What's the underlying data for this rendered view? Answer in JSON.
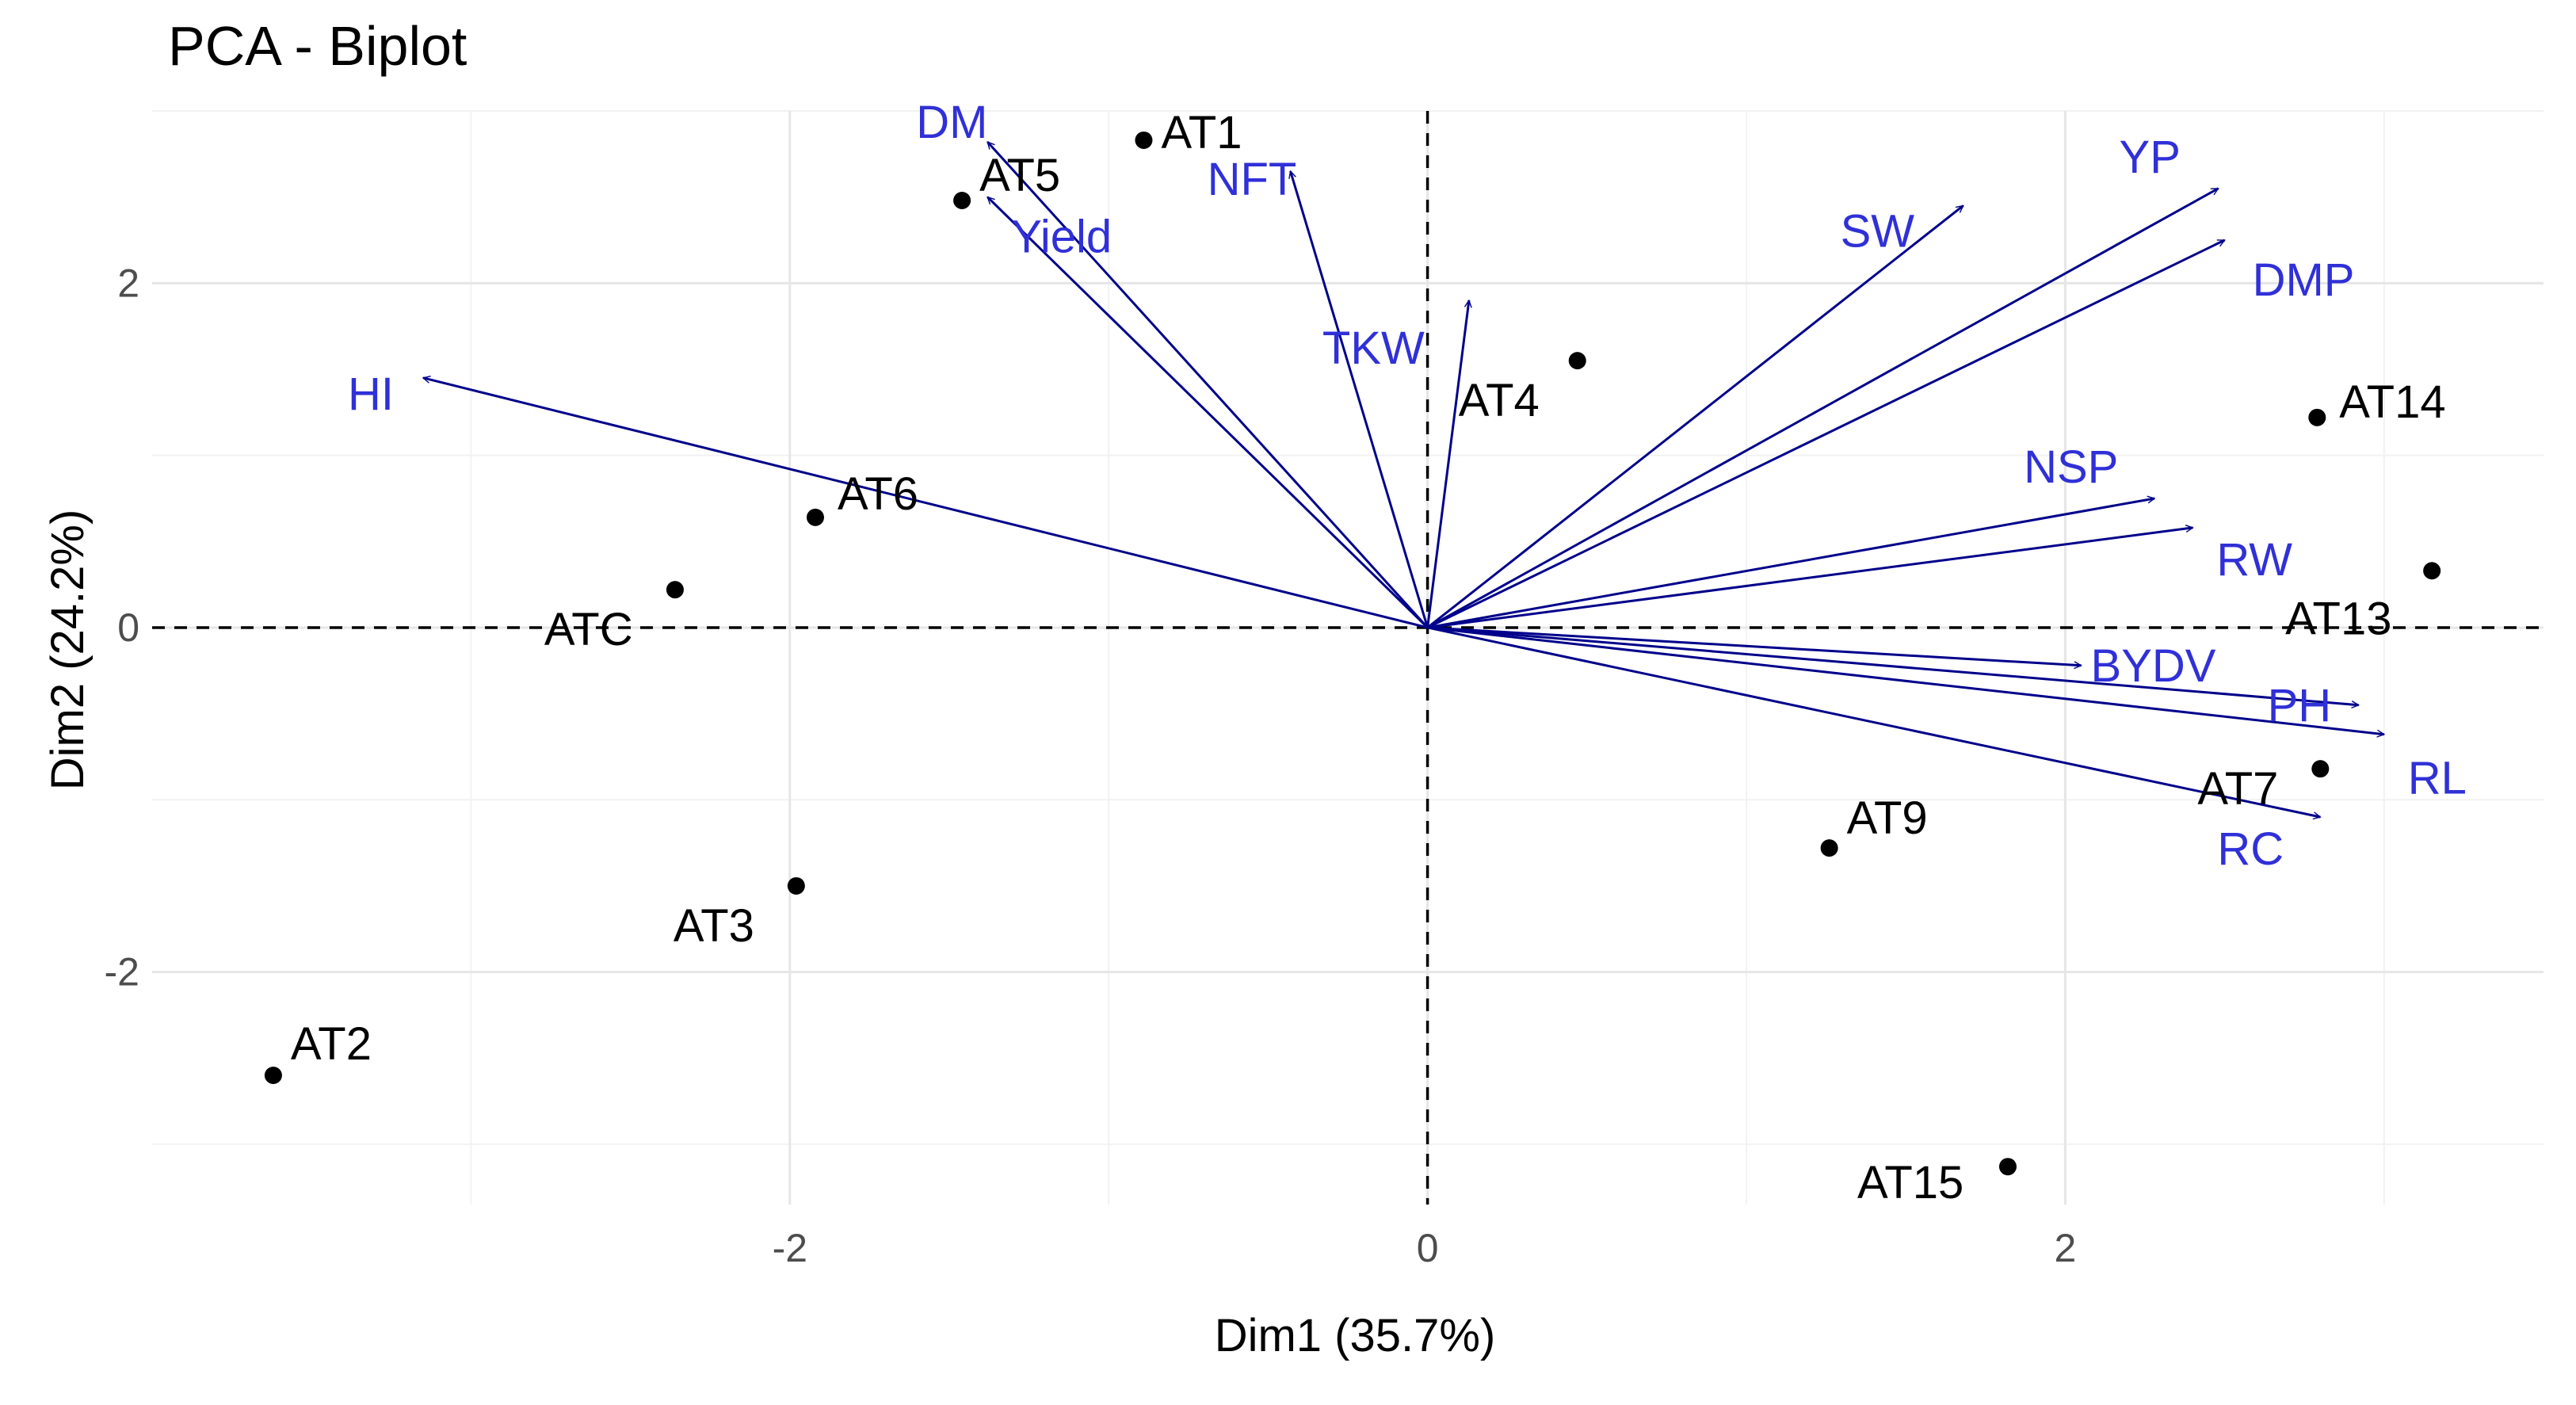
{
  "chart_data": {
    "type": "scatter",
    "title": "PCA - Biplot",
    "xlabel": "Dim1 (35.7%)",
    "ylabel": "Dim2 (24.2%)",
    "xlim": [
      -4.0,
      3.5
    ],
    "ylim": [
      -3.35,
      3.0
    ],
    "xticks": [
      -2,
      0,
      2
    ],
    "yticks": [
      -2,
      0,
      2
    ],
    "grid": true,
    "observations": [
      {
        "label": "AT1",
        "x": -0.89,
        "y": 2.83
      },
      {
        "label": "AT5",
        "x": -1.46,
        "y": 2.48
      },
      {
        "label": "AT4",
        "x": 0.47,
        "y": 1.55
      },
      {
        "label": "AT14",
        "x": 2.79,
        "y": 1.22
      },
      {
        "label": "AT6",
        "x": -1.92,
        "y": 0.64
      },
      {
        "label": "ATC",
        "x": -2.36,
        "y": 0.22
      },
      {
        "label": "AT13",
        "x": 3.15,
        "y": 0.33
      },
      {
        "label": "AT7",
        "x": 2.8,
        "y": -0.82
      },
      {
        "label": "AT9",
        "x": 1.26,
        "y": -1.28
      },
      {
        "label": "AT3",
        "x": -1.98,
        "y": -1.5
      },
      {
        "label": "AT2",
        "x": -3.62,
        "y": -2.6
      },
      {
        "label": "AT15",
        "x": 1.82,
        "y": -3.13
      }
    ],
    "variables": [
      {
        "label": "DM",
        "x": -1.38,
        "y": 2.82
      },
      {
        "label": "Yield",
        "x": -1.38,
        "y": 2.5
      },
      {
        "label": "NFT",
        "x": -0.43,
        "y": 2.65
      },
      {
        "label": "TKW",
        "x": 0.13,
        "y": 1.9
      },
      {
        "label": "HI",
        "x": -3.15,
        "y": 1.45
      },
      {
        "label": "SW",
        "x": 1.68,
        "y": 2.45
      },
      {
        "label": "YP",
        "x": 2.48,
        "y": 2.55
      },
      {
        "label": "DMP",
        "x": 2.5,
        "y": 2.25
      },
      {
        "label": "NSP",
        "x": 2.28,
        "y": 0.75
      },
      {
        "label": "RW",
        "x": 2.4,
        "y": 0.58
      },
      {
        "label": "BYDV",
        "x": 2.05,
        "y": -0.22
      },
      {
        "label": "PH",
        "x": 2.92,
        "y": -0.45
      },
      {
        "label": "RL",
        "x": 3.0,
        "y": -0.62
      },
      {
        "label": "RC",
        "x": 2.8,
        "y": -1.1
      }
    ]
  }
}
